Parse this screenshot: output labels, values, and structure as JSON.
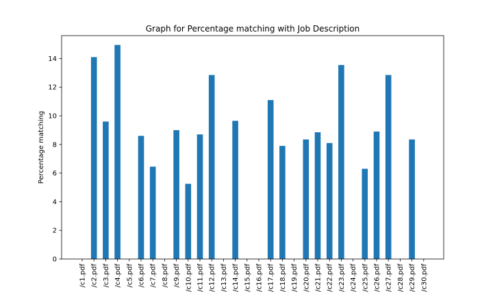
{
  "chart_data": {
    "type": "bar",
    "title": "Graph for Percentage matching with Job Description",
    "xlabel": "",
    "ylabel": "Percentage matching",
    "ylim": [
      0,
      15.6
    ],
    "yticks": [
      0,
      2,
      4,
      6,
      8,
      10,
      12,
      14
    ],
    "grid": false,
    "bar_color": "#1f77b4",
    "categories": [
      "/c1.pdf",
      "/c2.pdf",
      "/c3.pdf",
      "/c4.pdf",
      "/c5.pdf",
      "/c6.pdf",
      "/c7.pdf",
      "/c8.pdf",
      "/c9.pdf",
      "/c10.pdf",
      "/c11.pdf",
      "/c12.pdf",
      "/c13.pdf",
      "/c14.pdf",
      "/c15.pdf",
      "/c16.pdf",
      "/c17.pdf",
      "/c18.pdf",
      "/c19.pdf",
      "/c20.pdf",
      "/c21.pdf",
      "/c22.pdf",
      "/c23.pdf",
      "/c24.pdf",
      "/c25.pdf",
      "/c26.pdf",
      "/c27.pdf",
      "/c28.pdf",
      "/c29.pdf",
      "/c30.pdf"
    ],
    "values": [
      0,
      14.1,
      9.6,
      14.95,
      0,
      8.6,
      6.45,
      0,
      9.0,
      5.25,
      8.7,
      12.85,
      0,
      9.65,
      0,
      0,
      11.1,
      7.9,
      0,
      8.35,
      8.85,
      8.1,
      13.55,
      0,
      6.3,
      8.9,
      12.85,
      0,
      8.35,
      0
    ]
  }
}
